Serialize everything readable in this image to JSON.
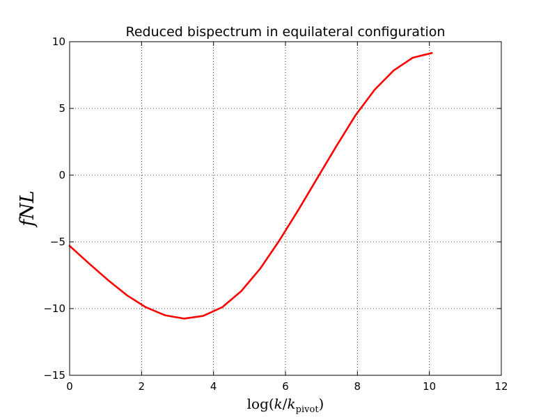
{
  "chart_data": {
    "type": "line",
    "title": "Reduced bispectrum in equilateral configuration",
    "xlabel": {
      "prefix": "log(",
      "var": "k",
      "sep": "/",
      "var2": "k",
      "sub": "pivot",
      "suffix": ")"
    },
    "ylabel": "fNL",
    "xlim": [
      0,
      12
    ],
    "ylim": [
      -15,
      10
    ],
    "xticks": [
      0,
      2,
      4,
      6,
      8,
      10,
      12
    ],
    "yticks": [
      10,
      5,
      0,
      -5,
      -10,
      -15
    ],
    "ytick_labels": [
      "10",
      "5",
      "0",
      "−5",
      "−10",
      "−15"
    ],
    "grid": true,
    "series": [
      {
        "color": "#ff0000",
        "x": [
          0.0,
          0.53,
          1.06,
          1.59,
          2.12,
          2.65,
          3.18,
          3.71,
          4.24,
          4.77,
          5.3,
          5.83,
          6.36,
          6.89,
          7.42,
          7.95,
          8.48,
          9.01,
          9.54,
          10.07
        ],
        "y": [
          -5.3,
          -6.6,
          -7.85,
          -9.0,
          -9.9,
          -10.5,
          -10.75,
          -10.55,
          -9.9,
          -8.7,
          -7.0,
          -4.9,
          -2.6,
          -0.2,
          2.2,
          4.5,
          6.4,
          7.85,
          8.8,
          9.15
        ]
      }
    ]
  }
}
